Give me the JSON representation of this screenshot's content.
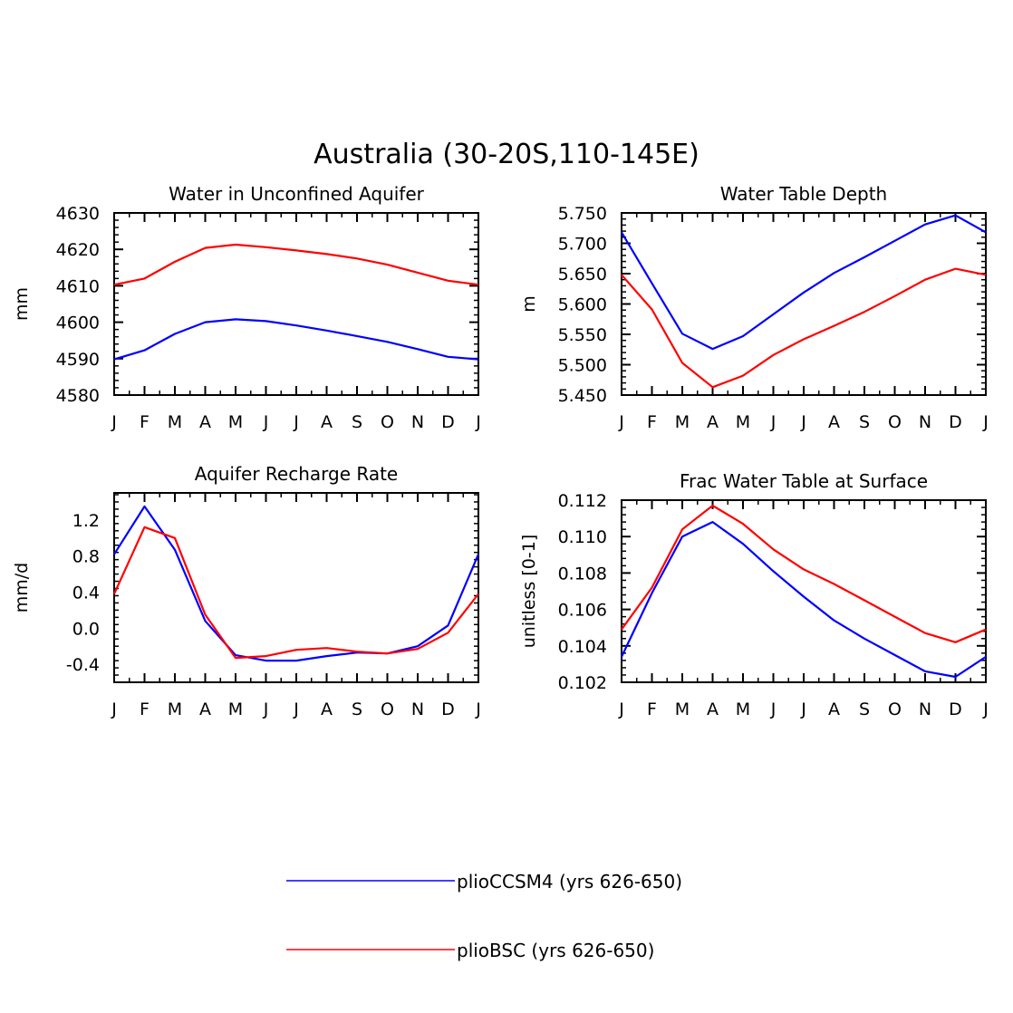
{
  "figure": {
    "title": "Australia (30-20S,110-145E)"
  },
  "legend": {
    "position": "bottom-center",
    "entries": [
      {
        "label": "plioCCSM4 (yrs 626-650)",
        "color": "#0000ff"
      },
      {
        "label": "plioBSC (yrs 626-650)",
        "color": "#ff0000"
      }
    ]
  },
  "chart_data": [
    {
      "type": "line",
      "title": "Water in Unconfined Aquifer",
      "ylabel": "mm",
      "xlabel": "",
      "categories": [
        "J",
        "F",
        "M",
        "A",
        "M",
        "J",
        "J",
        "A",
        "S",
        "O",
        "N",
        "D",
        "J"
      ],
      "ylim": [
        4580,
        4630
      ],
      "yticks": [
        4580,
        4590,
        4600,
        4610,
        4620,
        4630
      ],
      "ytick_labels": [
        "4580",
        "4590",
        "4600",
        "4610",
        "4620",
        "4630"
      ],
      "series": [
        {
          "name": "plioCCSM4 (yrs 626-650)",
          "color": "#0000ff",
          "values": [
            4589.8,
            4592.3,
            4596.8,
            4600.0,
            4600.8,
            4600.3,
            4599.1,
            4597.7,
            4596.2,
            4594.6,
            4592.6,
            4590.5,
            4589.8
          ]
        },
        {
          "name": "plioBSC (yrs 626-650)",
          "color": "#ff0000",
          "values": [
            4610.3,
            4612.0,
            4616.6,
            4620.4,
            4621.3,
            4620.6,
            4619.7,
            4618.7,
            4617.5,
            4615.8,
            4613.6,
            4611.4,
            4610.3
          ]
        }
      ]
    },
    {
      "type": "line",
      "title": "Water Table Depth",
      "ylabel": "m",
      "xlabel": "",
      "categories": [
        "J",
        "F",
        "M",
        "A",
        "M",
        "J",
        "J",
        "A",
        "S",
        "O",
        "N",
        "D",
        "J"
      ],
      "ylim": [
        5.45,
        5.75
      ],
      "yticks": [
        5.45,
        5.5,
        5.55,
        5.6,
        5.65,
        5.7,
        5.75
      ],
      "ytick_labels": [
        "5.450",
        "5.500",
        "5.550",
        "5.600",
        "5.650",
        "5.700",
        "5.750"
      ],
      "series": [
        {
          "name": "plioCCSM4 (yrs 626-650)",
          "color": "#0000ff",
          "values": [
            5.718,
            5.634,
            5.551,
            5.526,
            5.547,
            5.583,
            5.619,
            5.651,
            5.677,
            5.704,
            5.731,
            5.746,
            5.718
          ]
        },
        {
          "name": "plioBSC (yrs 626-650)",
          "color": "#ff0000",
          "values": [
            5.648,
            5.591,
            5.503,
            5.463,
            5.482,
            5.516,
            5.542,
            5.564,
            5.587,
            5.613,
            5.64,
            5.658,
            5.648
          ]
        }
      ]
    },
    {
      "type": "line",
      "title": "Aquifer Recharge Rate",
      "ylabel": "mm/d",
      "xlabel": "",
      "categories": [
        "J",
        "F",
        "M",
        "A",
        "M",
        "J",
        "J",
        "A",
        "S",
        "O",
        "N",
        "D",
        "J"
      ],
      "ylim": [
        -0.6,
        1.5
      ],
      "yticks": [
        -0.4,
        0.0,
        0.4,
        0.8,
        1.2
      ],
      "ytick_labels": [
        "-0.4",
        "0.0",
        "0.4",
        "0.8",
        "1.2"
      ],
      "series": [
        {
          "name": "plioCCSM4 (yrs 626-650)",
          "color": "#0000ff",
          "values": [
            0.82,
            1.35,
            0.87,
            0.08,
            -0.3,
            -0.36,
            -0.36,
            -0.31,
            -0.27,
            -0.28,
            -0.2,
            0.03,
            0.82
          ]
        },
        {
          "name": "plioBSC (yrs 626-650)",
          "color": "#ff0000",
          "values": [
            0.38,
            1.12,
            1.0,
            0.15,
            -0.33,
            -0.31,
            -0.24,
            -0.22,
            -0.26,
            -0.28,
            -0.23,
            -0.05,
            0.38
          ]
        }
      ]
    },
    {
      "type": "line",
      "title": "Frac Water Table at Surface",
      "ylabel": "unitless [0-1]",
      "xlabel": "",
      "categories": [
        "J",
        "F",
        "M",
        "A",
        "M",
        "J",
        "J",
        "A",
        "S",
        "O",
        "N",
        "D",
        "J"
      ],
      "ylim": [
        0.102,
        0.112
      ],
      "yticks": [
        0.102,
        0.104,
        0.106,
        0.108,
        0.11,
        0.112
      ],
      "ytick_labels": [
        "0.102",
        "0.104",
        "0.106",
        "0.108",
        "0.110",
        "0.112"
      ],
      "series": [
        {
          "name": "plioCCSM4 (yrs 626-650)",
          "color": "#0000ff",
          "values": [
            0.1034,
            0.1069,
            0.11,
            0.1108,
            0.1096,
            0.1081,
            0.1067,
            0.1054,
            0.1044,
            0.1035,
            0.1026,
            0.1023,
            0.1034
          ]
        },
        {
          "name": "plioBSC (yrs 626-650)",
          "color": "#ff0000",
          "values": [
            0.1049,
            0.1072,
            0.1104,
            0.1117,
            0.1107,
            0.1093,
            0.1082,
            0.1074,
            0.1065,
            0.1056,
            0.1047,
            0.1042,
            0.1049
          ]
        }
      ]
    }
  ]
}
